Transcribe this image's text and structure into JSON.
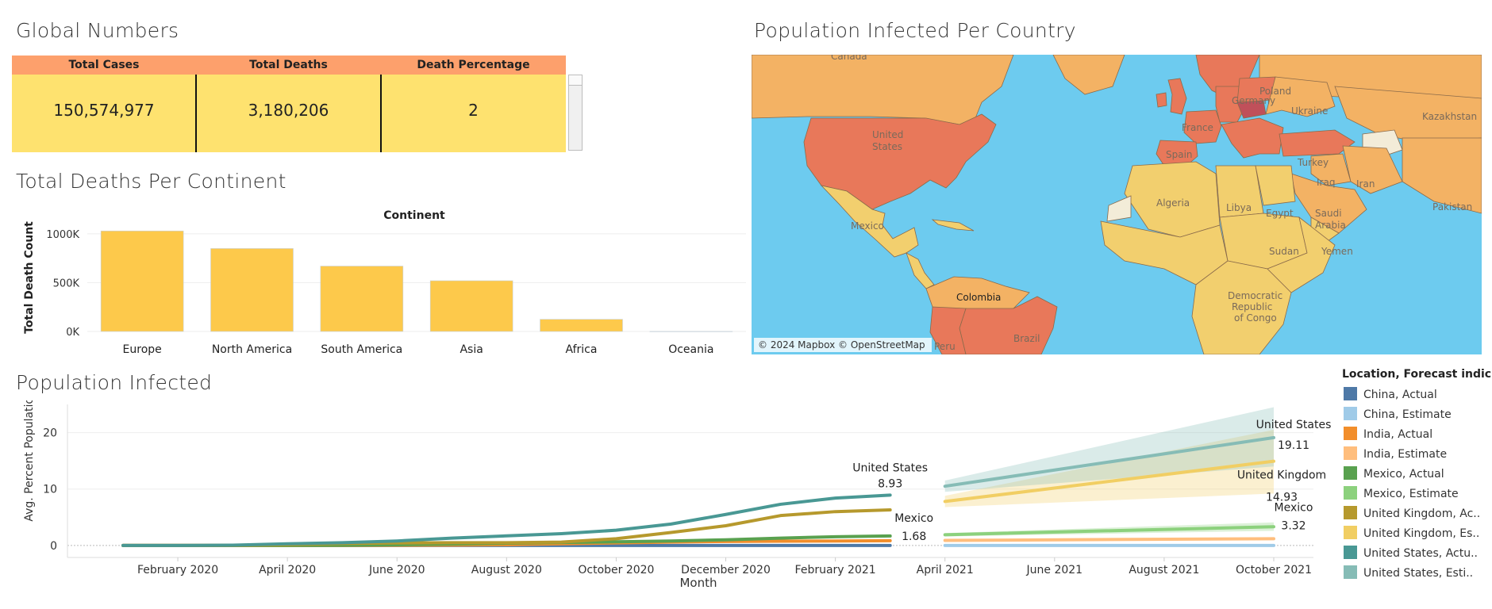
{
  "sections": {
    "global_title": "Global Numbers",
    "deaths_title": "Total Deaths Per Continent",
    "map_title": "Population Infected Per Country",
    "infected_title": "Population Infected"
  },
  "colors": {
    "kpi_header": "#fda06c",
    "kpi_body": "#fee26f",
    "bar": "#fdc94b",
    "ocean": "#6dcbef",
    "high": "#e8785a",
    "mid": "#f3b264",
    "low": "#f2cf6e"
  },
  "kpi": {
    "headers": [
      "Total Cases",
      "Total Deaths",
      "Death Percentage"
    ],
    "values": [
      "150,574,977",
      "3,180,206",
      "2"
    ]
  },
  "map": {
    "attribution": "© 2024 Mapbox © OpenStreetMap",
    "labels": {
      "canada": "Canada",
      "united_states": [
        "United",
        "States"
      ],
      "mexico": "Mexico",
      "colombia": "Colombia",
      "brazil": "Brazil",
      "peru": "Peru",
      "germany": "Germany",
      "poland": "Poland",
      "ukraine": "Ukraine",
      "kazakhstan": "Kazakhstan",
      "france": "France",
      "spain": "Spain",
      "turkey": "Turkey",
      "iraq": "Iraq",
      "iran": "Iran",
      "pakistan": "Pakistan",
      "algeria": "Algeria",
      "libya": "Libya",
      "egypt": "Egypt",
      "saudi_arabia": [
        "Saudi",
        "Arabia"
      ],
      "sudan": "Sudan",
      "yemen": "Yemen",
      "drc": [
        "Democratic",
        "Republic",
        "of Congo"
      ]
    }
  },
  "chart_data": [
    {
      "type": "bar",
      "title": "Continent",
      "ylabel": "Total Death Count",
      "categories": [
        "Europe",
        "North America",
        "South America",
        "Asia",
        "Africa",
        "Oceania"
      ],
      "values": [
        1030000,
        850000,
        670000,
        520000,
        125000,
        1000
      ],
      "yticks": [
        {
          "v": 0,
          "label": "0K"
        },
        {
          "v": 500000,
          "label": "500K"
        },
        {
          "v": 1000000,
          "label": "1000K"
        }
      ],
      "ylim": [
        0,
        1040000
      ],
      "grid": true
    },
    {
      "type": "line",
      "xlabel": "Month",
      "ylabel": "Avg. Percent Populatio..",
      "ylim": [
        -1,
        25
      ],
      "yticks": [
        0,
        10,
        20
      ],
      "x_ticks": [
        "February 2020",
        "April 2020",
        "June 2020",
        "August 2020",
        "October 2020",
        "December 2020",
        "February 2021",
        "April 2021",
        "June 2021",
        "August 2021",
        "October 2021"
      ],
      "series": [
        {
          "name": "China, Actual",
          "color": "#4e79a7",
          "x": [
            "2020-01",
            "2020-02",
            "2020-03",
            "2020-04",
            "2020-05",
            "2020-06",
            "2020-07",
            "2020-08",
            "2020-09",
            "2020-10",
            "2020-11",
            "2020-12",
            "2021-01",
            "2021-02",
            "2021-03"
          ],
          "values": [
            0.0,
            0.0,
            0.0,
            0.0,
            0.0,
            0.0,
            0.0,
            0.0,
            0.0,
            0.0,
            0.0,
            0.0,
            0.0,
            0.0,
            0.0
          ]
        },
        {
          "name": "India, Actual",
          "color": "#f28e2b",
          "x": [
            "2020-01",
            "2020-02",
            "2020-03",
            "2020-04",
            "2020-05",
            "2020-06",
            "2020-07",
            "2020-08",
            "2020-09",
            "2020-10",
            "2020-11",
            "2020-12",
            "2021-01",
            "2021-02",
            "2021-03"
          ],
          "values": [
            0.0,
            0.0,
            0.0,
            0.0,
            0.01,
            0.03,
            0.08,
            0.15,
            0.3,
            0.45,
            0.6,
            0.7,
            0.75,
            0.8,
            0.85
          ]
        },
        {
          "name": "Mexico, Actual",
          "color": "#59a14f",
          "x": [
            "2020-01",
            "2020-02",
            "2020-03",
            "2020-04",
            "2020-05",
            "2020-06",
            "2020-07",
            "2020-08",
            "2020-09",
            "2020-10",
            "2020-11",
            "2020-12",
            "2021-01",
            "2021-02",
            "2021-03"
          ],
          "values": [
            0.0,
            0.0,
            0.0,
            0.01,
            0.04,
            0.12,
            0.25,
            0.4,
            0.52,
            0.65,
            0.8,
            1.0,
            1.3,
            1.55,
            1.68
          ]
        },
        {
          "name": "United Kingdom, Actual",
          "color": "#b6992d",
          "x": [
            "2020-01",
            "2020-02",
            "2020-03",
            "2020-04",
            "2020-05",
            "2020-06",
            "2020-07",
            "2020-08",
            "2020-09",
            "2020-10",
            "2020-11",
            "2020-12",
            "2021-01",
            "2021-02",
            "2021-03"
          ],
          "values": [
            0.0,
            0.0,
            0.02,
            0.15,
            0.35,
            0.45,
            0.5,
            0.5,
            0.6,
            1.2,
            2.3,
            3.5,
            5.3,
            6.0,
            6.3
          ]
        },
        {
          "name": "United States, Actual",
          "color": "#499894",
          "x": [
            "2020-01",
            "2020-02",
            "2020-03",
            "2020-04",
            "2020-05",
            "2020-06",
            "2020-07",
            "2020-08",
            "2020-09",
            "2020-10",
            "2020-11",
            "2020-12",
            "2021-01",
            "2021-02",
            "2021-03"
          ],
          "values": [
            0.0,
            0.0,
            0.05,
            0.3,
            0.5,
            0.8,
            1.3,
            1.7,
            2.1,
            2.7,
            3.8,
            5.5,
            7.3,
            8.4,
            8.93
          ]
        },
        {
          "name": "China, Estimate",
          "color": "#a0cbe8",
          "x": [
            "2021-04",
            "2021-10"
          ],
          "values": [
            0.0,
            0.0
          ]
        },
        {
          "name": "India, Estimate",
          "color": "#ffbe7d",
          "x": [
            "2021-04",
            "2021-10"
          ],
          "values": [
            0.9,
            1.2
          ]
        },
        {
          "name": "Mexico, Estimate",
          "color": "#8cd17d",
          "x": [
            "2021-04",
            "2021-10"
          ],
          "values": [
            1.9,
            3.32
          ],
          "band_low": [
            1.6,
            2.6
          ],
          "band_high": [
            2.2,
            4.1
          ]
        },
        {
          "name": "United Kingdom, Estimate",
          "color": "#f1ce63",
          "x": [
            "2021-04",
            "2021-10"
          ],
          "values": [
            7.8,
            14.93
          ],
          "band_low": [
            6.8,
            9.2
          ],
          "band_high": [
            8.8,
            20.5
          ]
        },
        {
          "name": "United States, Estimate",
          "color": "#86bcb6",
          "x": [
            "2021-04",
            "2021-10"
          ],
          "values": [
            10.5,
            19.11
          ],
          "band_low": [
            9.5,
            14.0
          ],
          "band_high": [
            11.5,
            24.5
          ]
        }
      ],
      "annotations": [
        {
          "series": "United States, Actual",
          "at": "2021-03",
          "name": "United States",
          "value": "8.93"
        },
        {
          "series": "Mexico, Actual",
          "at": "2021-03",
          "name": "Mexico",
          "value": "1.68"
        },
        {
          "series": "United States, Estimate",
          "at": "2021-10",
          "name": "United States",
          "value": "19.11"
        },
        {
          "series": "United Kingdom, Estimate",
          "at": "2021-10",
          "name": "United Kingdom",
          "value": "14.93"
        },
        {
          "series": "Mexico, Estimate",
          "at": "2021-10",
          "name": "Mexico",
          "value": "3.32"
        }
      ],
      "legend": {
        "title": "Location, Forecast indic..",
        "placement": "right",
        "items": [
          {
            "label": "China, Actual",
            "color": "#4e79a7"
          },
          {
            "label": "China, Estimate",
            "color": "#a0cbe8"
          },
          {
            "label": "India, Actual",
            "color": "#f28e2b"
          },
          {
            "label": "India, Estimate",
            "color": "#ffbe7d"
          },
          {
            "label": "Mexico, Actual",
            "color": "#59a14f"
          },
          {
            "label": "Mexico, Estimate",
            "color": "#8cd17d"
          },
          {
            "label": "United Kingdom, Ac..",
            "color": "#b6992d"
          },
          {
            "label": "United Kingdom, Es..",
            "color": "#f1ce63"
          },
          {
            "label": "United States, Actu..",
            "color": "#499894"
          },
          {
            "label": "United States, Esti..",
            "color": "#86bcb6"
          }
        ]
      }
    }
  ]
}
